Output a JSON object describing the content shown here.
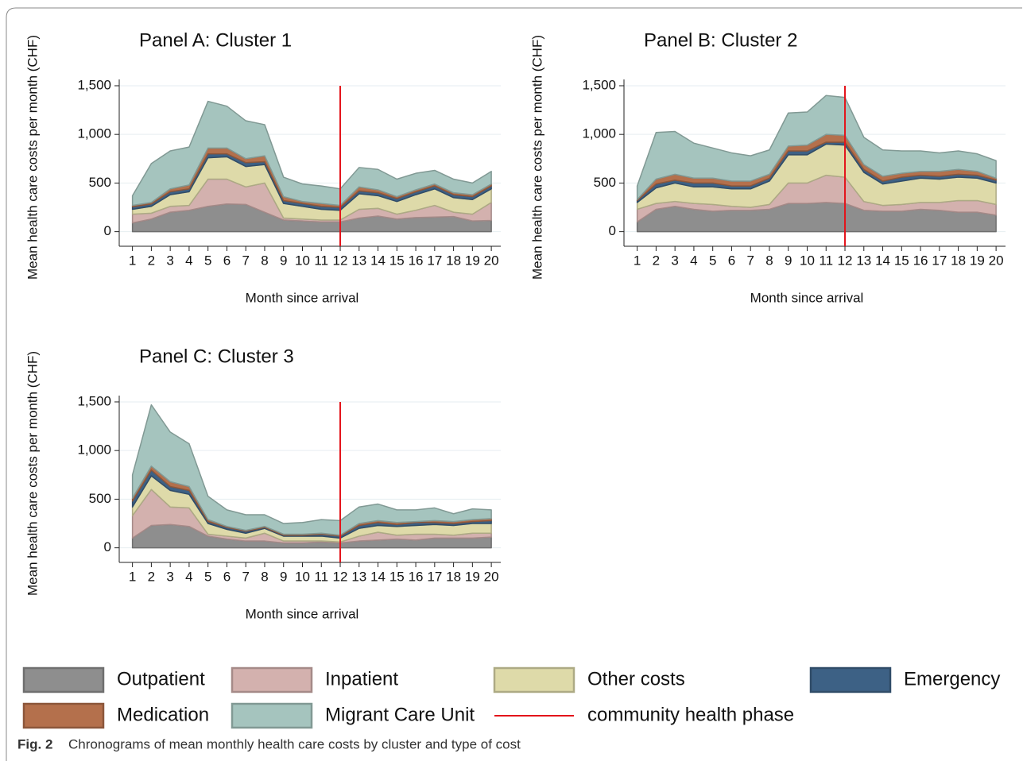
{
  "chart_data": [
    {
      "type": "area",
      "title": "Panel A: Cluster 1",
      "xlabel": "Month since arrival",
      "ylabel": "Mean health care costs per month (CHF)",
      "x": [
        1,
        2,
        3,
        4,
        5,
        6,
        7,
        8,
        9,
        10,
        11,
        12,
        13,
        14,
        15,
        16,
        17,
        18,
        19,
        20
      ],
      "xlim": [
        0.3,
        20.5
      ],
      "xticks": [
        1,
        2,
        3,
        4,
        5,
        6,
        7,
        8,
        9,
        10,
        11,
        12,
        13,
        14,
        15,
        16,
        17,
        18,
        19,
        20
      ],
      "ylim": [
        -150,
        1565
      ],
      "yticks": [
        0,
        500,
        {
          "value": 1000,
          "label": "1,000"
        },
        {
          "value": 1500,
          "label": "1,500"
        }
      ],
      "grid": true,
      "vline": 12,
      "series": [
        {
          "name": "Outpatient",
          "color": "#8e8e8e",
          "values": [
            90,
            130,
            200,
            220,
            260,
            285,
            280,
            200,
            120,
            110,
            100,
            100,
            140,
            160,
            130,
            145,
            150,
            155,
            110,
            115
          ]
        },
        {
          "name": "Inpatient",
          "color": "#d3b1ae",
          "values": [
            90,
            60,
            60,
            50,
            280,
            255,
            180,
            300,
            20,
            20,
            20,
            20,
            90,
            80,
            50,
            75,
            120,
            45,
            70,
            185
          ]
        },
        {
          "name": "Other costs",
          "color": "#dedaa9",
          "values": [
            50,
            70,
            120,
            140,
            220,
            230,
            210,
            190,
            150,
            130,
            110,
            100,
            160,
            130,
            130,
            160,
            170,
            150,
            150,
            140
          ]
        },
        {
          "name": "Emergency",
          "color": "#3d6185",
          "values": [
            25,
            25,
            30,
            30,
            40,
            30,
            40,
            30,
            30,
            30,
            30,
            30,
            30,
            30,
            30,
            30,
            30,
            30,
            30,
            30
          ]
        },
        {
          "name": "Medication",
          "color": "#b4704c",
          "values": [
            15,
            15,
            30,
            40,
            60,
            60,
            40,
            60,
            40,
            20,
            30,
            20,
            40,
            30,
            20,
            20,
            20,
            20,
            20,
            20
          ]
        },
        {
          "name": "Migrant Care Unit",
          "color": "#a5c4be",
          "values": [
            100,
            400,
            390,
            390,
            480,
            430,
            390,
            320,
            200,
            180,
            180,
            170,
            200,
            210,
            180,
            170,
            140,
            140,
            120,
            130
          ]
        }
      ]
    },
    {
      "type": "area",
      "title": "Panel B: Cluster 2",
      "xlabel": "Month since arrival",
      "ylabel": "Mean health care costs per month (CHF)",
      "x": [
        1,
        2,
        3,
        4,
        5,
        6,
        7,
        8,
        9,
        10,
        11,
        12,
        13,
        14,
        15,
        16,
        17,
        18,
        19,
        20
      ],
      "xlim": [
        0.3,
        20.5
      ],
      "xticks": [
        1,
        2,
        3,
        4,
        5,
        6,
        7,
        8,
        9,
        10,
        11,
        12,
        13,
        14,
        15,
        16,
        17,
        18,
        19,
        20
      ],
      "ylim": [
        -150,
        1565
      ],
      "yticks": [
        0,
        500,
        {
          "value": 1000,
          "label": "1,000"
        },
        {
          "value": 1500,
          "label": "1,500"
        }
      ],
      "grid": true,
      "vline": 12,
      "series": [
        {
          "name": "Outpatient",
          "color": "#8e8e8e",
          "values": [
            100,
            230,
            260,
            230,
            210,
            220,
            220,
            230,
            290,
            290,
            300,
            290,
            220,
            210,
            210,
            230,
            220,
            200,
            200,
            170
          ]
        },
        {
          "name": "Inpatient",
          "color": "#d3b1ae",
          "values": [
            130,
            60,
            50,
            60,
            70,
            40,
            30,
            50,
            210,
            210,
            280,
            270,
            90,
            60,
            70,
            70,
            80,
            120,
            120,
            110
          ]
        },
        {
          "name": "Other costs",
          "color": "#dedaa9",
          "values": [
            70,
            160,
            190,
            170,
            180,
            180,
            190,
            240,
            290,
            290,
            320,
            330,
            300,
            220,
            240,
            250,
            240,
            240,
            230,
            220
          ]
        },
        {
          "name": "Emergency",
          "color": "#3d6185",
          "values": [
            20,
            40,
            30,
            40,
            40,
            30,
            30,
            30,
            40,
            40,
            20,
            30,
            30,
            30,
            40,
            30,
            30,
            30,
            30,
            30
          ]
        },
        {
          "name": "Medication",
          "color": "#b4704c",
          "values": [
            10,
            50,
            60,
            50,
            50,
            50,
            50,
            40,
            50,
            60,
            80,
            70,
            50,
            50,
            40,
            40,
            50,
            50,
            40,
            20
          ]
        },
        {
          "name": "Migrant Care Unit",
          "color": "#a5c4be",
          "values": [
            140,
            480,
            440,
            360,
            310,
            290,
            260,
            250,
            340,
            340,
            400,
            390,
            280,
            270,
            230,
            210,
            190,
            190,
            180,
            180
          ]
        }
      ]
    },
    {
      "type": "area",
      "title": "Panel C: Cluster 3",
      "xlabel": "Month since arrival",
      "ylabel": "Mean health care costs per month (CHF)",
      "x": [
        1,
        2,
        3,
        4,
        5,
        6,
        7,
        8,
        9,
        10,
        11,
        12,
        13,
        14,
        15,
        16,
        17,
        18,
        19,
        20
      ],
      "xlim": [
        0.3,
        20.5
      ],
      "xticks": [
        1,
        2,
        3,
        4,
        5,
        6,
        7,
        8,
        9,
        10,
        11,
        12,
        13,
        14,
        15,
        16,
        17,
        18,
        19,
        20
      ],
      "ylim": [
        -150,
        1565
      ],
      "yticks": [
        0,
        500,
        {
          "value": 1000,
          "label": "1,000"
        },
        {
          "value": 1500,
          "label": "1,500"
        }
      ],
      "grid": true,
      "vline": 12,
      "series": [
        {
          "name": "Outpatient",
          "color": "#8e8e8e",
          "values": [
            100,
            230,
            240,
            220,
            120,
            90,
            70,
            70,
            50,
            50,
            60,
            50,
            70,
            80,
            90,
            80,
            100,
            100,
            100,
            110
          ]
        },
        {
          "name": "Inpatient",
          "color": "#d3b1ae",
          "values": [
            230,
            370,
            180,
            190,
            20,
            30,
            30,
            80,
            20,
            20,
            10,
            10,
            50,
            80,
            40,
            60,
            40,
            30,
            50,
            40
          ]
        },
        {
          "name": "Other costs",
          "color": "#dedaa9",
          "values": [
            90,
            140,
            170,
            140,
            110,
            70,
            50,
            50,
            50,
            50,
            50,
            40,
            80,
            70,
            90,
            90,
            100,
            100,
            100,
            100
          ]
        },
        {
          "name": "Emergency",
          "color": "#3d6185",
          "values": [
            60,
            60,
            40,
            40,
            20,
            20,
            20,
            10,
            10,
            10,
            20,
            20,
            30,
            30,
            20,
            30,
            20,
            20,
            20,
            30
          ]
        },
        {
          "name": "Medication",
          "color": "#b4704c",
          "values": [
            30,
            40,
            50,
            40,
            20,
            10,
            10,
            10,
            10,
            10,
            10,
            10,
            20,
            20,
            20,
            10,
            20,
            20,
            20,
            20
          ]
        },
        {
          "name": "Migrant Care Unit",
          "color": "#a5c4be",
          "values": [
            240,
            630,
            510,
            440,
            240,
            170,
            160,
            120,
            110,
            120,
            140,
            150,
            170,
            170,
            130,
            120,
            130,
            80,
            110,
            90
          ]
        }
      ]
    }
  ],
  "legend": {
    "line_label": "community health phase",
    "line_color": "#e3141b"
  },
  "caption": {
    "label": "Fig. 2",
    "text": "Chronograms of mean monthly health care costs by cluster and type of cost"
  }
}
